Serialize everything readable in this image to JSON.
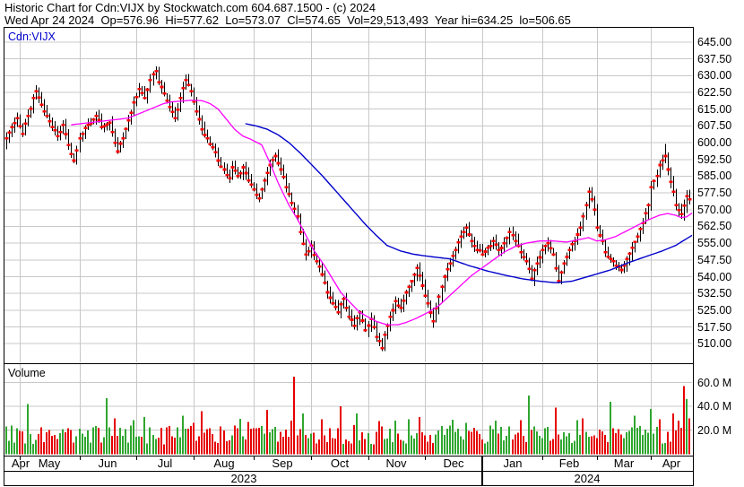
{
  "header": {
    "line1": "Historic Chart for Cdn:VIJX by Stockwatch.com 604.687.1500 - (c) 2024",
    "line2": "Wed Apr 24 2024  Op=576.96  Hi=577.62  Lo=573.07  Cl=574.65  Vol=29,513,493  Year hi=634.25  lo=506.65"
  },
  "price_panel": {
    "symbol_label": "Cdn:VIJX",
    "y_tick_labels": [
      "645.00",
      "637.50",
      "630.00",
      "622.50",
      "615.00",
      "607.50",
      "600.00",
      "592.50",
      "585.00",
      "577.50",
      "570.00",
      "562.50",
      "555.00",
      "547.50",
      "540.00",
      "532.50",
      "525.00",
      "517.50",
      "510.00"
    ]
  },
  "volume_panel": {
    "label": "Volume",
    "y_tick_labels": [
      "60.0 M",
      "40.0 M",
      "20.0 M"
    ]
  },
  "x_axis": {
    "month_labels": [
      "Apr",
      "May",
      "Jun",
      "Jul",
      "Aug",
      "Sep",
      "Oct",
      "Nov",
      "Dec",
      "Jan",
      "Feb",
      "Mar",
      "Apr"
    ],
    "year_labels": [
      "2023",
      "2024"
    ]
  },
  "colors": {
    "grid": "#c8c8c8",
    "bar_stem": "#000000",
    "close_tick": "#ff0000",
    "ma_fast": "#ff00ff",
    "ma_slow": "#0000cc",
    "vol_up": "#2fa62f",
    "vol_down": "#e60000",
    "vol_flat": "#a8a8a8",
    "symbol_text": "#0000cc",
    "border": "#000000"
  },
  "chart_data": {
    "type": "ohlc+volume",
    "title": "Historic Chart for Cdn:VIJX",
    "instrument": "Cdn:VIJX",
    "last_quote": {
      "date": "Wed Apr 24 2024",
      "open": 576.96,
      "high": 577.62,
      "low": 573.07,
      "close": 574.65,
      "volume": 29513493
    },
    "year_high": 634.25,
    "year_low": 506.65,
    "price_axis": {
      "min": 510,
      "max": 645,
      "step": 7.5
    },
    "volume_axis_M": [
      20,
      40,
      60
    ],
    "trading_days": 252,
    "month_start_days": [
      0,
      5,
      27,
      48,
      69,
      91,
      112,
      133,
      154,
      175,
      197,
      217,
      237
    ],
    "year_boundary_day": 175,
    "close_anchors": [
      [
        0,
        602
      ],
      [
        2,
        607
      ],
      [
        4,
        611
      ],
      [
        6,
        604
      ],
      [
        8,
        612
      ],
      [
        10,
        620
      ],
      [
        11,
        623
      ],
      [
        13,
        617
      ],
      [
        15,
        612
      ],
      [
        17,
        607
      ],
      [
        19,
        603
      ],
      [
        21,
        608
      ],
      [
        23,
        599
      ],
      [
        25,
        592
      ],
      [
        27,
        602
      ],
      [
        30,
        608
      ],
      [
        33,
        612
      ],
      [
        35,
        607
      ],
      [
        38,
        609
      ],
      [
        40,
        600
      ],
      [
        41,
        596
      ],
      [
        43,
        602
      ],
      [
        45,
        610
      ],
      [
        47,
        618
      ],
      [
        49,
        624
      ],
      [
        51,
        620
      ],
      [
        53,
        628
      ],
      [
        55,
        632
      ],
      [
        56,
        627
      ],
      [
        58,
        622
      ],
      [
        60,
        616
      ],
      [
        62,
        611
      ],
      [
        64,
        620
      ],
      [
        66,
        628
      ],
      [
        68,
        623
      ],
      [
        70,
        614
      ],
      [
        72,
        606
      ],
      [
        74,
        602
      ],
      [
        76,
        598
      ],
      [
        78,
        592
      ],
      [
        80,
        588
      ],
      [
        82,
        584
      ],
      [
        83,
        589
      ],
      [
        85,
        585
      ],
      [
        87,
        589
      ],
      [
        89,
        583
      ],
      [
        91,
        579
      ],
      [
        93,
        575
      ],
      [
        95,
        583
      ],
      [
        97,
        590
      ],
      [
        99,
        594
      ],
      [
        101,
        588
      ],
      [
        103,
        580
      ],
      [
        105,
        573
      ],
      [
        107,
        567
      ],
      [
        108,
        560
      ],
      [
        110,
        550
      ],
      [
        112,
        554
      ],
      [
        114,
        547
      ],
      [
        116,
        541
      ],
      [
        118,
        533
      ],
      [
        120,
        528
      ],
      [
        122,
        524
      ],
      [
        124,
        530
      ],
      [
        126,
        522
      ],
      [
        128,
        518
      ],
      [
        130,
        524
      ],
      [
        132,
        516
      ],
      [
        134,
        521
      ],
      [
        136,
        513
      ],
      [
        138,
        508
      ],
      [
        139,
        514
      ],
      [
        141,
        522
      ],
      [
        143,
        529
      ],
      [
        145,
        526
      ],
      [
        147,
        533
      ],
      [
        149,
        538
      ],
      [
        151,
        544
      ],
      [
        153,
        536
      ],
      [
        155,
        528
      ],
      [
        157,
        520
      ],
      [
        159,
        531
      ],
      [
        161,
        540
      ],
      [
        163,
        546
      ],
      [
        165,
        552
      ],
      [
        167,
        558
      ],
      [
        169,
        562
      ],
      [
        171,
        556
      ],
      [
        173,
        552
      ],
      [
        175,
        550
      ],
      [
        177,
        553
      ],
      [
        179,
        556
      ],
      [
        181,
        552
      ],
      [
        183,
        555
      ],
      [
        185,
        560
      ],
      [
        187,
        556
      ],
      [
        189,
        551
      ],
      [
        191,
        547
      ],
      [
        193,
        539
      ],
      [
        195,
        546
      ],
      [
        197,
        552
      ],
      [
        199,
        555
      ],
      [
        201,
        550
      ],
      [
        203,
        538
      ],
      [
        205,
        546
      ],
      [
        207,
        552
      ],
      [
        209,
        556
      ],
      [
        211,
        562
      ],
      [
        213,
        572
      ],
      [
        214,
        578
      ],
      [
        216,
        570
      ],
      [
        217,
        562
      ],
      [
        219,
        556
      ],
      [
        220,
        551
      ],
      [
        222,
        548
      ],
      [
        224,
        545
      ],
      [
        226,
        543
      ],
      [
        228,
        548
      ],
      [
        230,
        553
      ],
      [
        232,
        558
      ],
      [
        234,
        564
      ],
      [
        236,
        572
      ],
      [
        237,
        580
      ],
      [
        239,
        585
      ],
      [
        240,
        590
      ],
      [
        242,
        594
      ],
      [
        243,
        588
      ],
      [
        245,
        578
      ],
      [
        246,
        572
      ],
      [
        248,
        568
      ],
      [
        250,
        576
      ],
      [
        251,
        574.65
      ]
    ],
    "ma_fast": {
      "name": "short moving average",
      "color": "#ff00ff",
      "anchors": [
        [
          24,
          608
        ],
        [
          31,
          609
        ],
        [
          38,
          610
        ],
        [
          45,
          611
        ],
        [
          48,
          612.5
        ],
        [
          51,
          614
        ],
        [
          55,
          616
        ],
        [
          58,
          617.5
        ],
        [
          61,
          618.3
        ],
        [
          64,
          618.6
        ],
        [
          68,
          619
        ],
        [
          72,
          618.8
        ],
        [
          75,
          617.5
        ],
        [
          78,
          615
        ],
        [
          80,
          612
        ],
        [
          82,
          609
        ],
        [
          84,
          606
        ],
        [
          87,
          603
        ],
        [
          90,
          601.5
        ],
        [
          94,
          599
        ],
        [
          97,
          591
        ],
        [
          100,
          582
        ],
        [
          104,
          572
        ],
        [
          107,
          566
        ],
        [
          110,
          559
        ],
        [
          113,
          552
        ],
        [
          117,
          545
        ],
        [
          120,
          539
        ],
        [
          123,
          533
        ],
        [
          126,
          529
        ],
        [
          130,
          524
        ],
        [
          133,
          522
        ],
        [
          136,
          520
        ],
        [
          140,
          518.5
        ],
        [
          144,
          518.5
        ],
        [
          147,
          519.5
        ],
        [
          151,
          521.5
        ],
        [
          155,
          524
        ],
        [
          159,
          527
        ],
        [
          163,
          531.5
        ],
        [
          167,
          536
        ],
        [
          171,
          540.5
        ],
        [
          175,
          544
        ],
        [
          179,
          547.5
        ],
        [
          183,
          551
        ],
        [
          187,
          553.5
        ],
        [
          191,
          555
        ],
        [
          196,
          556
        ],
        [
          201,
          556
        ],
        [
          206,
          555.5
        ],
        [
          210,
          556.5
        ],
        [
          214,
          557.5
        ],
        [
          217,
          556
        ],
        [
          220,
          556.5
        ],
        [
          224,
          558
        ],
        [
          228,
          560.5
        ],
        [
          232,
          563
        ],
        [
          236,
          565.5
        ],
        [
          240,
          567.5
        ],
        [
          243,
          568.3
        ],
        [
          246,
          567.5
        ],
        [
          248,
          566.5
        ],
        [
          250,
          566.8
        ],
        [
          252,
          568.5
        ]
      ]
    },
    "ma_slow": {
      "name": "long moving average",
      "color": "#0000cc",
      "anchors": [
        [
          88,
          608.5
        ],
        [
          92,
          607.5
        ],
        [
          96,
          606
        ],
        [
          100,
          603.5
        ],
        [
          104,
          600
        ],
        [
          108,
          595.5
        ],
        [
          112,
          590.5
        ],
        [
          116,
          585.5
        ],
        [
          120,
          580
        ],
        [
          124,
          574.5
        ],
        [
          128,
          569
        ],
        [
          132,
          563.5
        ],
        [
          136,
          558.5
        ],
        [
          140,
          554
        ],
        [
          145,
          551.5
        ],
        [
          150,
          550
        ],
        [
          156,
          549
        ],
        [
          163,
          548
        ],
        [
          170,
          545
        ],
        [
          177,
          542.5
        ],
        [
          184,
          540.5
        ],
        [
          190,
          539
        ],
        [
          196,
          538
        ],
        [
          202,
          537.3
        ],
        [
          208,
          538
        ],
        [
          215,
          540.5
        ],
        [
          222,
          543
        ],
        [
          228,
          546
        ],
        [
          235,
          549
        ],
        [
          241,
          551.5
        ],
        [
          246,
          554
        ],
        [
          252,
          558.5
        ]
      ]
    },
    "volume_base_range_M": [
      8,
      24
    ],
    "volume_spikes_M": [
      [
        8,
        42,
        "g"
      ],
      [
        37,
        47,
        "g"
      ],
      [
        40,
        30,
        "r"
      ],
      [
        51,
        31,
        "g"
      ],
      [
        65,
        32,
        "g"
      ],
      [
        72,
        36,
        "r"
      ],
      [
        96,
        37,
        "r"
      ],
      [
        106,
        65,
        "r"
      ],
      [
        109,
        34,
        "g"
      ],
      [
        116,
        29,
        "r"
      ],
      [
        123,
        40,
        "r"
      ],
      [
        129,
        34,
        "g"
      ],
      [
        143,
        28,
        "g"
      ],
      [
        148,
        29,
        "g"
      ],
      [
        152,
        31,
        "r"
      ],
      [
        169,
        26,
        "g"
      ],
      [
        180,
        28,
        "g"
      ],
      [
        192,
        49,
        "g"
      ],
      [
        202,
        39,
        "r"
      ],
      [
        212,
        30,
        "r"
      ],
      [
        222,
        44,
        "g"
      ],
      [
        231,
        32,
        "g"
      ],
      [
        237,
        38,
        "g"
      ],
      [
        240,
        29,
        "r"
      ],
      [
        245,
        34,
        "r"
      ],
      [
        249,
        57,
        "r"
      ],
      [
        250,
        46,
        "g"
      ],
      [
        251,
        30,
        "r"
      ]
    ]
  }
}
